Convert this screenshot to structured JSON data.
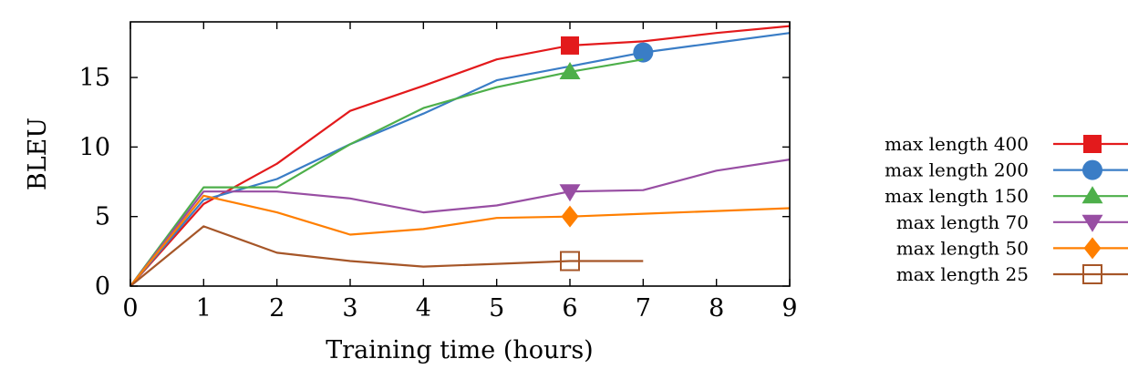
{
  "chart_data": {
    "type": "line",
    "xlabel": "Training time (hours)",
    "ylabel": "BLEU",
    "xlim": [
      0,
      9
    ],
    "ylim": [
      0,
      19
    ],
    "xticks": [
      "0",
      "1",
      "2",
      "3",
      "4",
      "5",
      "6",
      "7",
      "8",
      "9"
    ],
    "yticks": [
      "0",
      "5",
      "10",
      "15"
    ],
    "grid": false,
    "legend_position": "right",
    "series": [
      {
        "name": "max length 400",
        "color": "#e31a1c",
        "marker": "square-filled",
        "marker_at": 6,
        "x": [
          0,
          1,
          2,
          3,
          4,
          5,
          6,
          7,
          8,
          9
        ],
        "y": [
          0,
          5.9,
          8.8,
          12.6,
          14.4,
          16.3,
          17.3,
          17.6,
          18.2,
          18.7
        ]
      },
      {
        "name": "max length 200",
        "color": "#3a7dc6",
        "marker": "circle-filled",
        "marker_at": 7,
        "x": [
          0,
          1,
          2,
          3,
          4,
          5,
          6,
          7,
          8,
          9
        ],
        "y": [
          0,
          6.2,
          7.7,
          10.2,
          12.4,
          14.8,
          15.8,
          16.8,
          17.5,
          18.2
        ]
      },
      {
        "name": "max length 150",
        "color": "#4daf4a",
        "marker": "triangle-up-filled",
        "marker_at": 6,
        "x": [
          0,
          1,
          2,
          3,
          4,
          5,
          6,
          7
        ],
        "y": [
          0,
          7.1,
          7.1,
          10.2,
          12.8,
          14.3,
          15.4,
          16.3
        ]
      },
      {
        "name": "max length 70",
        "color": "#984ea3",
        "marker": "triangle-down-filled",
        "marker_at": 6,
        "x": [
          0,
          1,
          2,
          3,
          4,
          5,
          6,
          7,
          8,
          9
        ],
        "y": [
          0,
          6.8,
          6.8,
          6.3,
          5.3,
          5.8,
          6.8,
          6.9,
          8.3,
          9.1
        ]
      },
      {
        "name": "max length 50",
        "color": "#ff7f00",
        "marker": "diamond-filled",
        "marker_at": 6,
        "x": [
          0,
          1,
          2,
          3,
          4,
          5,
          6,
          7,
          8,
          9
        ],
        "y": [
          0,
          6.5,
          5.3,
          3.7,
          4.1,
          4.9,
          5.0,
          5.2,
          5.4,
          5.6
        ]
      },
      {
        "name": "max length 25",
        "color": "#a65628",
        "marker": "square-open",
        "marker_at": 6,
        "x": [
          0,
          1,
          2,
          3,
          4,
          5,
          6,
          7
        ],
        "y": [
          0,
          4.3,
          2.4,
          1.8,
          1.4,
          1.6,
          1.8,
          1.8
        ]
      }
    ]
  }
}
